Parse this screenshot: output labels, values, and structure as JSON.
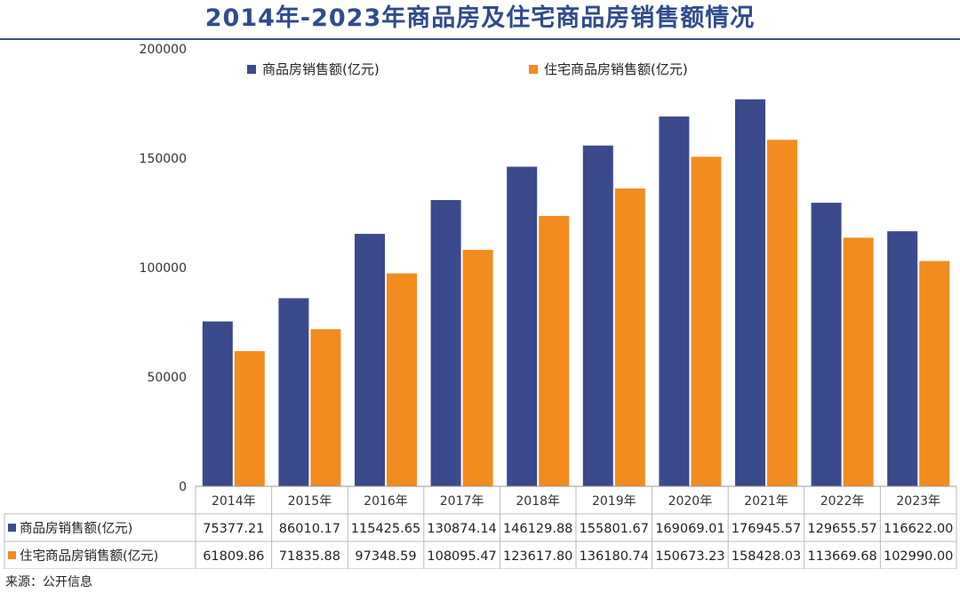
{
  "title": "2014年-2023年商品房及住宅商品房销售额情况",
  "source": "来源：公开信息",
  "colors": {
    "series1": "#3a4a8c",
    "series2": "#f28c1f",
    "grid": "#bbbbbb"
  },
  "chart_data": {
    "type": "bar",
    "title": "2014年-2023年商品房及住宅商品房销售额情况",
    "categories": [
      "2014年",
      "2015年",
      "2016年",
      "2017年",
      "2018年",
      "2019年",
      "2020年",
      "2021年",
      "2022年",
      "2023年"
    ],
    "series": [
      {
        "name": "商品房销售额(亿元)",
        "values": [
          75377.21,
          86010.17,
          115425.65,
          130874.14,
          146129.88,
          155801.67,
          169069.01,
          176945.57,
          129655.57,
          116622.0
        ],
        "labels": [
          "75377.21",
          "86010.17",
          "115425.65",
          "130874.14",
          "146129.88",
          "155801.67",
          "169069.01",
          "176945.57",
          "129655.57",
          "116622.00"
        ]
      },
      {
        "name": "住宅商品房销售额(亿元)",
        "values": [
          61809.86,
          71835.88,
          97348.59,
          108095.47,
          123617.8,
          136180.74,
          150673.23,
          158428.03,
          113669.68,
          102990.0
        ],
        "labels": [
          "61809.86",
          "71835.88",
          "97348.59",
          "108095.47",
          "123617.80",
          "136180.74",
          "150673.23",
          "158428.03",
          "113669.68",
          "102990.00"
        ]
      }
    ],
    "ylim": [
      0,
      200000
    ],
    "yticks": [
      "0",
      "50000",
      "100000",
      "150000",
      "200000"
    ],
    "legend": "top",
    "grid": false,
    "data_table": true
  }
}
